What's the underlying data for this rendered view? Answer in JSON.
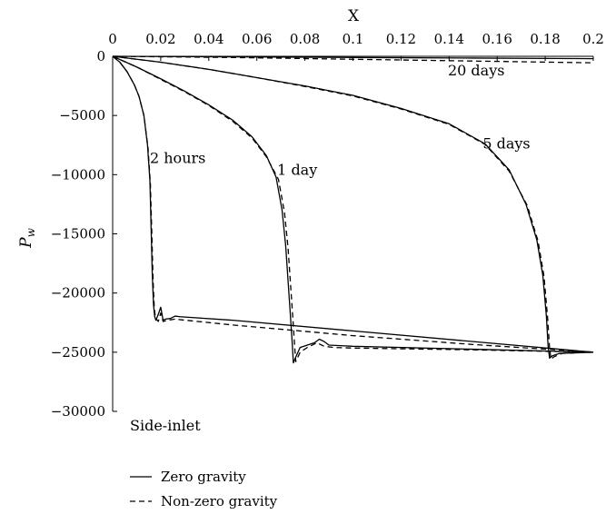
{
  "chart_data": {
    "type": "line",
    "title": "",
    "xlabel": "X",
    "ylabel": "P",
    "ylabel_subscript": "w",
    "xlim": [
      0,
      0.2
    ],
    "ylim": [
      -30000,
      0
    ],
    "x_axis_position": "top",
    "grid": false,
    "legend_position": "bottom-left",
    "xticks": [
      "0",
      "0.02",
      "0.04",
      "0.06",
      "0.08",
      "0.1",
      "0.12",
      "0.14",
      "0.16",
      "0.18",
      "0.2"
    ],
    "yticks": [
      "0",
      "−5000",
      "−10000",
      "−15000",
      "−20000",
      "−25000",
      "−30000"
    ],
    "annotation": "Side-inlet",
    "curve_labels": [
      {
        "text": "2 hours",
        "x": 0.0155,
        "y": -9000
      },
      {
        "text": "1 day",
        "x": 0.0685,
        "y": -10000
      },
      {
        "text": "5 days",
        "x": 0.154,
        "y": -7800
      },
      {
        "text": "20 days",
        "x": 0.1395,
        "y": -1600
      }
    ],
    "legend": [
      {
        "label": "Zero gravity",
        "dash": "solid"
      },
      {
        "label": "Non-zero gravity",
        "dash": "dashed"
      }
    ],
    "series": [
      {
        "name": "Zero gravity",
        "time": "2 hours",
        "dash": "solid",
        "points": [
          [
            0,
            0
          ],
          [
            0.003,
            -500
          ],
          [
            0.006,
            -1300
          ],
          [
            0.009,
            -2400
          ],
          [
            0.011,
            -3400
          ],
          [
            0.013,
            -5000
          ],
          [
            0.0145,
            -7500
          ],
          [
            0.0155,
            -10500
          ],
          [
            0.016,
            -14500
          ],
          [
            0.0165,
            -18500
          ],
          [
            0.017,
            -21000
          ],
          [
            0.0175,
            -22000
          ],
          [
            0.018,
            -22300
          ],
          [
            0.019,
            -21800
          ],
          [
            0.02,
            -21200
          ],
          [
            0.021,
            -22300
          ],
          [
            0.022,
            -22200
          ],
          [
            0.024,
            -22150
          ],
          [
            0.026,
            -21950
          ],
          [
            0.028,
            -22000
          ],
          [
            0.05,
            -22300
          ],
          [
            0.1,
            -23200
          ],
          [
            0.15,
            -24100
          ],
          [
            0.2,
            -25000
          ]
        ]
      },
      {
        "name": "Non-zero gravity",
        "time": "2 hours",
        "dash": "dashed",
        "points": [
          [
            0,
            0
          ],
          [
            0.003,
            -500
          ],
          [
            0.006,
            -1300
          ],
          [
            0.009,
            -2400
          ],
          [
            0.011,
            -3400
          ],
          [
            0.013,
            -5000
          ],
          [
            0.0147,
            -7700
          ],
          [
            0.0157,
            -10800
          ],
          [
            0.0163,
            -15000
          ],
          [
            0.0168,
            -18800
          ],
          [
            0.0173,
            -21200
          ],
          [
            0.0178,
            -22100
          ],
          [
            0.019,
            -22400
          ],
          [
            0.02,
            -21700
          ],
          [
            0.021,
            -22400
          ],
          [
            0.023,
            -22300
          ],
          [
            0.026,
            -22200
          ],
          [
            0.028,
            -22250
          ],
          [
            0.05,
            -22700
          ],
          [
            0.1,
            -23600
          ],
          [
            0.15,
            -24350
          ],
          [
            0.2,
            -25000
          ]
        ]
      },
      {
        "name": "Zero gravity",
        "time": "1 day",
        "dash": "solid",
        "points": [
          [
            0,
            0
          ],
          [
            0.01,
            -900
          ],
          [
            0.02,
            -1900
          ],
          [
            0.03,
            -2950
          ],
          [
            0.04,
            -4100
          ],
          [
            0.05,
            -5400
          ],
          [
            0.058,
            -6800
          ],
          [
            0.064,
            -8400
          ],
          [
            0.068,
            -10200
          ],
          [
            0.0705,
            -13000
          ],
          [
            0.072,
            -16000
          ],
          [
            0.073,
            -19000
          ],
          [
            0.074,
            -22000
          ],
          [
            0.0748,
            -24500
          ],
          [
            0.0752,
            -25900
          ],
          [
            0.076,
            -25500
          ],
          [
            0.078,
            -24600
          ],
          [
            0.081,
            -24400
          ],
          [
            0.084,
            -24200
          ],
          [
            0.086,
            -23900
          ],
          [
            0.088,
            -24100
          ],
          [
            0.09,
            -24400
          ],
          [
            0.1,
            -24500
          ],
          [
            0.15,
            -24750
          ],
          [
            0.2,
            -25000
          ]
        ]
      },
      {
        "name": "Non-zero gravity",
        "time": "1 day",
        "dash": "dashed",
        "points": [
          [
            0,
            0
          ],
          [
            0.01,
            -900
          ],
          [
            0.02,
            -1950
          ],
          [
            0.03,
            -3000
          ],
          [
            0.04,
            -4150
          ],
          [
            0.05,
            -5500
          ],
          [
            0.058,
            -6900
          ],
          [
            0.064,
            -8500
          ],
          [
            0.069,
            -10400
          ],
          [
            0.0715,
            -13200
          ],
          [
            0.073,
            -16200
          ],
          [
            0.074,
            -19200
          ],
          [
            0.075,
            -22200
          ],
          [
            0.0758,
            -24700
          ],
          [
            0.0762,
            -25800
          ],
          [
            0.078,
            -25000
          ],
          [
            0.081,
            -24600
          ],
          [
            0.085,
            -24200
          ],
          [
            0.088,
            -24500
          ],
          [
            0.092,
            -24600
          ],
          [
            0.1,
            -24650
          ],
          [
            0.15,
            -24800
          ],
          [
            0.2,
            -25000
          ]
        ]
      },
      {
        "name": "Zero gravity",
        "time": "5 days",
        "dash": "solid",
        "points": [
          [
            0,
            0
          ],
          [
            0.02,
            -500
          ],
          [
            0.04,
            -1100
          ],
          [
            0.06,
            -1800
          ],
          [
            0.08,
            -2500
          ],
          [
            0.1,
            -3300
          ],
          [
            0.12,
            -4400
          ],
          [
            0.14,
            -5700
          ],
          [
            0.155,
            -7400
          ],
          [
            0.165,
            -9600
          ],
          [
            0.172,
            -12500
          ],
          [
            0.1765,
            -15500
          ],
          [
            0.179,
            -18500
          ],
          [
            0.1805,
            -22000
          ],
          [
            0.1812,
            -24500
          ],
          [
            0.1818,
            -25500
          ],
          [
            0.183,
            -25300
          ],
          [
            0.186,
            -25100
          ],
          [
            0.2,
            -25000
          ]
        ]
      },
      {
        "name": "Non-zero gravity",
        "time": "5 days",
        "dash": "dashed",
        "points": [
          [
            0,
            0
          ],
          [
            0.02,
            -500
          ],
          [
            0.04,
            -1100
          ],
          [
            0.06,
            -1800
          ],
          [
            0.08,
            -2550
          ],
          [
            0.1,
            -3350
          ],
          [
            0.12,
            -4450
          ],
          [
            0.14,
            -5750
          ],
          [
            0.155,
            -7450
          ],
          [
            0.165,
            -9700
          ],
          [
            0.1725,
            -12600
          ],
          [
            0.177,
            -15600
          ],
          [
            0.1795,
            -18600
          ],
          [
            0.181,
            -22100
          ],
          [
            0.1818,
            -24600
          ],
          [
            0.1824,
            -25600
          ],
          [
            0.1835,
            -25400
          ],
          [
            0.187,
            -25100
          ],
          [
            0.2,
            -25000
          ]
        ]
      },
      {
        "name": "Zero gravity",
        "time": "20 days",
        "dash": "solid",
        "points": [
          [
            0,
            0
          ],
          [
            0.05,
            -50
          ],
          [
            0.1,
            -100
          ],
          [
            0.15,
            -150
          ],
          [
            0.2,
            -200
          ]
        ]
      },
      {
        "name": "Non-zero gravity",
        "time": "20 days",
        "dash": "dashed",
        "points": [
          [
            0,
            0
          ],
          [
            0.05,
            -100
          ],
          [
            0.1,
            -250
          ],
          [
            0.15,
            -400
          ],
          [
            0.2,
            -550
          ]
        ]
      }
    ]
  }
}
